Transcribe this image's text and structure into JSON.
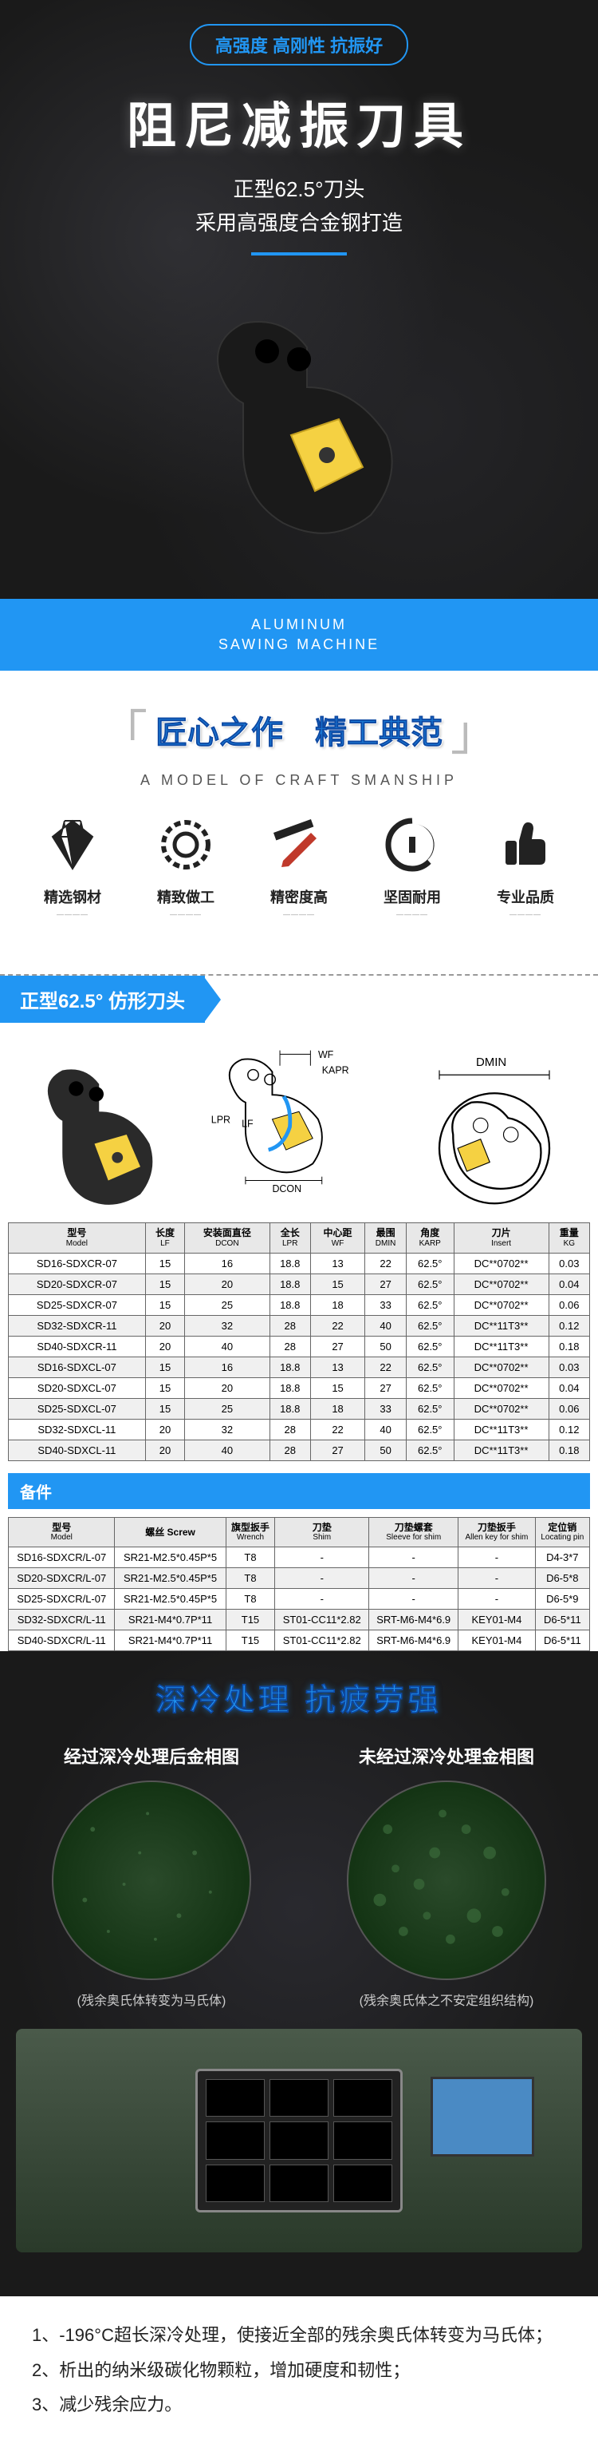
{
  "hero": {
    "badge": "高强度 高刚性 抗振好",
    "title": "阻尼减振刀具",
    "sub1": "正型62.5°刀头",
    "sub2": "采用高强度合金钢打造"
  },
  "blueBanner": {
    "line1": "ALUMINUM",
    "line2": "SAWING MACHINE"
  },
  "craft": {
    "title": "匠心之作　精工典范",
    "subtitle": "A MODEL OF CRAFT SMANSHIP",
    "features": [
      {
        "label": "精选钢材",
        "sub": "————"
      },
      {
        "label": "精致做工",
        "sub": "————"
      },
      {
        "label": "精密度高",
        "sub": "————"
      },
      {
        "label": "坚固耐用",
        "sub": "————"
      },
      {
        "label": "专业品质",
        "sub": "————"
      }
    ]
  },
  "specHeader": "正型62.5° 仿形刀头",
  "diagLabels": {
    "wf": "WF",
    "kapr": "KAPR",
    "lpr": "LPR",
    "lf": "LF",
    "dcon": "DCON",
    "dmin": "DMIN"
  },
  "table1": {
    "headers": [
      {
        "t": "型号",
        "s": "Model"
      },
      {
        "t": "长度",
        "s": "LF"
      },
      {
        "t": "安装面直径",
        "s": "DCON"
      },
      {
        "t": "全长",
        "s": "LPR"
      },
      {
        "t": "中心距",
        "s": "WF"
      },
      {
        "t": "最围",
        "s": "DMIN"
      },
      {
        "t": "角度",
        "s": "KARP"
      },
      {
        "t": "刀片",
        "s": "Insert"
      },
      {
        "t": "重量",
        "s": "KG"
      }
    ],
    "rows": [
      [
        "SD16-SDXCR-07",
        "15",
        "16",
        "18.8",
        "13",
        "22",
        "62.5°",
        "DC**0702**",
        "0.03"
      ],
      [
        "SD20-SDXCR-07",
        "15",
        "20",
        "18.8",
        "15",
        "27",
        "62.5°",
        "DC**0702**",
        "0.04"
      ],
      [
        "SD25-SDXCR-07",
        "15",
        "25",
        "18.8",
        "18",
        "33",
        "62.5°",
        "DC**0702**",
        "0.06"
      ],
      [
        "SD32-SDXCR-11",
        "20",
        "32",
        "28",
        "22",
        "40",
        "62.5°",
        "DC**11T3**",
        "0.12"
      ],
      [
        "SD40-SDXCR-11",
        "20",
        "40",
        "28",
        "27",
        "50",
        "62.5°",
        "DC**11T3**",
        "0.18"
      ],
      [
        "SD16-SDXCL-07",
        "15",
        "16",
        "18.8",
        "13",
        "22",
        "62.5°",
        "DC**0702**",
        "0.03"
      ],
      [
        "SD20-SDXCL-07",
        "15",
        "20",
        "18.8",
        "15",
        "27",
        "62.5°",
        "DC**0702**",
        "0.04"
      ],
      [
        "SD25-SDXCL-07",
        "15",
        "25",
        "18.8",
        "18",
        "33",
        "62.5°",
        "DC**0702**",
        "0.06"
      ],
      [
        "SD32-SDXCL-11",
        "20",
        "32",
        "28",
        "22",
        "40",
        "62.5°",
        "DC**11T3**",
        "0.12"
      ],
      [
        "SD40-SDXCL-11",
        "20",
        "40",
        "28",
        "27",
        "50",
        "62.5°",
        "DC**11T3**",
        "0.18"
      ]
    ]
  },
  "partsHeader": "备件",
  "table2": {
    "headers": [
      {
        "t": "型号",
        "s": "Model"
      },
      {
        "t": "螺丝 Screw",
        "s": ""
      },
      {
        "t": "旗型扳手",
        "s": "Wrench"
      },
      {
        "t": "刀垫",
        "s": "Shim"
      },
      {
        "t": "刀垫螺套",
        "s": "Sleeve for shim"
      },
      {
        "t": "刀垫扳手",
        "s": "Allen key for shim"
      },
      {
        "t": "定位销",
        "s": "Locating pin"
      }
    ],
    "rows": [
      [
        "SD16-SDXCR/L-07",
        "SR21-M2.5*0.45P*5",
        "T8",
        "-",
        "-",
        "-",
        "D4-3*7"
      ],
      [
        "SD20-SDXCR/L-07",
        "SR21-M2.5*0.45P*5",
        "T8",
        "-",
        "-",
        "-",
        "D6-5*8"
      ],
      [
        "SD25-SDXCR/L-07",
        "SR21-M2.5*0.45P*5",
        "T8",
        "-",
        "-",
        "-",
        "D6-5*9"
      ],
      [
        "SD32-SDXCR/L-11",
        "SR21-M4*0.7P*11",
        "T15",
        "ST01-CC11*2.82",
        "SRT-M6-M4*6.9",
        "KEY01-M4",
        "D6-5*11"
      ],
      [
        "SD40-SDXCR/L-11",
        "SR21-M4*0.7P*11",
        "T15",
        "ST01-CC11*2.82",
        "SRT-M6-M4*6.9",
        "KEY01-M4",
        "D6-5*11"
      ]
    ]
  },
  "cold": {
    "title": "深冷处理 抗疲劳强",
    "left": {
      "label": "经过深冷处理后金相图",
      "caption": "(残余奥氏体转变为马氏体)"
    },
    "right": {
      "label": "未经过深冷处理金相图",
      "caption": "(残余奥氏体之不安定组织结构)"
    }
  },
  "notes": [
    "1、-196°C超长深冷处理，使接近全部的残余奥氏体转变为马氏体；",
    "2、析出的纳米级碳化物颗粒，增加硬度和韧性；",
    "3、减少残余应力。"
  ],
  "colors": {
    "blue": "#2196f3",
    "darkBg": "#1a1a1a",
    "yellow": "#f5d142"
  }
}
